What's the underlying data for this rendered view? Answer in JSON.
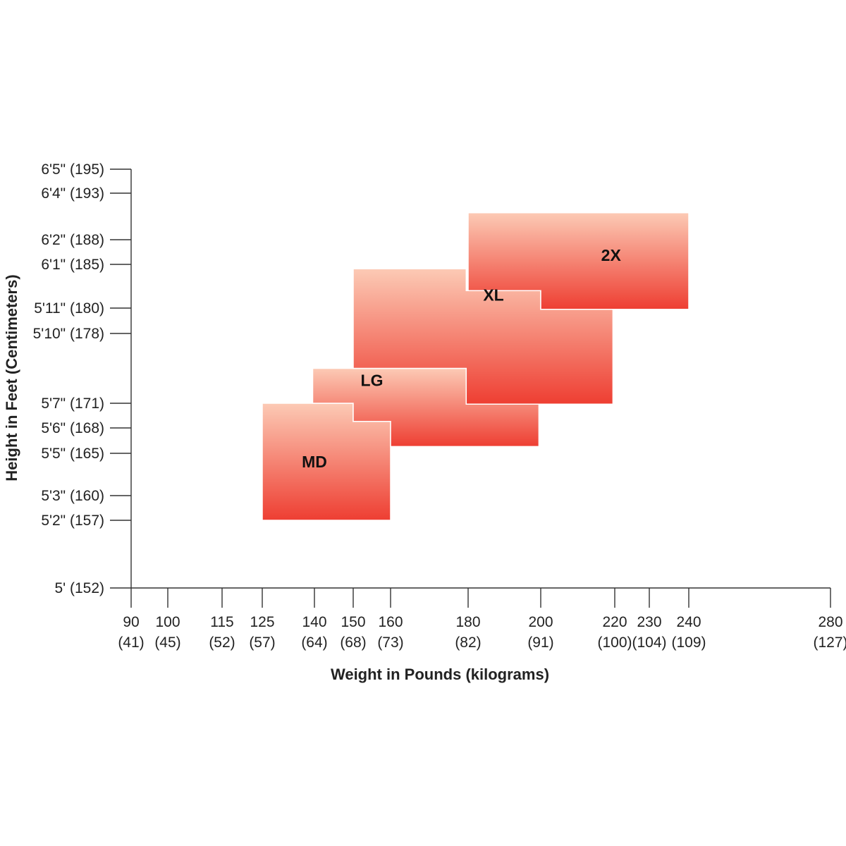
{
  "chart_data": {
    "type": "area",
    "title": "",
    "xlabel": "Weight in Pounds (kilograms)",
    "ylabel": "Height in Feet (Centimeters)",
    "xlim": [
      90,
      280
    ],
    "ylim": [
      152,
      195
    ],
    "x_ticks": [
      {
        "value": 90,
        "label": "90",
        "sublabel": "(41)"
      },
      {
        "value": 100,
        "label": "100",
        "sublabel": "(45)"
      },
      {
        "value": 115,
        "label": "115",
        "sublabel": "(52)"
      },
      {
        "value": 125,
        "label": "125",
        "sublabel": "(57)"
      },
      {
        "value": 140,
        "label": "140",
        "sublabel": "(64)"
      },
      {
        "value": 150,
        "label": "150",
        "sublabel": "(68)"
      },
      {
        "value": 160,
        "label": "160",
        "sublabel": "(73)"
      },
      {
        "value": 180,
        "label": "180",
        "sublabel": "(82)"
      },
      {
        "value": 200,
        "label": "200",
        "sublabel": "(91)"
      },
      {
        "value": 220,
        "label": "220",
        "sublabel": "(100)"
      },
      {
        "value": 230,
        "label": "230",
        "sublabel": "(104)"
      },
      {
        "value": 240,
        "label": "240",
        "sublabel": "(109)"
      },
      {
        "value": 280,
        "label": "280",
        "sublabel": "(127)"
      }
    ],
    "y_ticks": [
      {
        "value": 195,
        "label": "6'5\" (195)"
      },
      {
        "value": 193,
        "label": "6'4\" (193)"
      },
      {
        "value": 188,
        "label": "6'2\" (188)"
      },
      {
        "value": 185,
        "label": "6'1\" (185)"
      },
      {
        "value": 180,
        "label": "5'11\" (180)"
      },
      {
        "value": 178,
        "label": "5'10\" (178)"
      },
      {
        "value": 171,
        "label": "5'7\" (171)"
      },
      {
        "value": 168,
        "label": "5'6\" (168)"
      },
      {
        "value": 165,
        "label": "5'5\" (165)"
      },
      {
        "value": 160,
        "label": "5'3\" (160)"
      },
      {
        "value": 157,
        "label": "5'2\" (157)"
      },
      {
        "value": 152,
        "label": "5' (152)"
      }
    ],
    "regions": [
      {
        "name": "MD",
        "label_at": [
          140,
          164
        ],
        "points": [
          [
            125,
            171
          ],
          [
            150,
            171
          ],
          [
            150,
            168.8
          ],
          [
            160,
            168.8
          ],
          [
            160,
            157
          ],
          [
            125,
            157
          ]
        ]
      },
      {
        "name": "LG",
        "label_at": [
          155,
          173.3
        ],
        "points": [
          [
            139.5,
            174.5
          ],
          [
            179.5,
            174.5
          ],
          [
            179.5,
            170.9
          ],
          [
            199.5,
            170.9
          ],
          [
            199.5,
            165.8
          ],
          [
            160,
            165.8
          ],
          [
            160,
            168.8
          ],
          [
            150,
            168.8
          ],
          [
            150,
            171
          ],
          [
            139.5,
            171
          ]
        ]
      },
      {
        "name": "XL",
        "label_at": [
          187,
          181.5
        ],
        "points": [
          [
            150,
            184.5
          ],
          [
            179.5,
            184.5
          ],
          [
            179.5,
            182
          ],
          [
            200,
            182
          ],
          [
            200,
            179.9
          ],
          [
            219.5,
            179.9
          ],
          [
            219.5,
            170.9
          ],
          [
            179.5,
            170.9
          ],
          [
            179.5,
            174.5
          ],
          [
            150,
            174.5
          ]
        ]
      },
      {
        "name": "2X",
        "label_at": [
          219,
          186.1
        ],
        "points": [
          [
            180,
            190.9
          ],
          [
            240,
            190.9
          ],
          [
            240,
            179.9
          ],
          [
            200,
            179.9
          ],
          [
            200,
            182
          ],
          [
            180,
            182
          ]
        ]
      }
    ],
    "grid": false,
    "legend": "none",
    "colors": {
      "gradient_top": "#fccab5",
      "gradient_bottom": "#ee3e32",
      "axis": "#333333",
      "text": "#222222"
    }
  }
}
